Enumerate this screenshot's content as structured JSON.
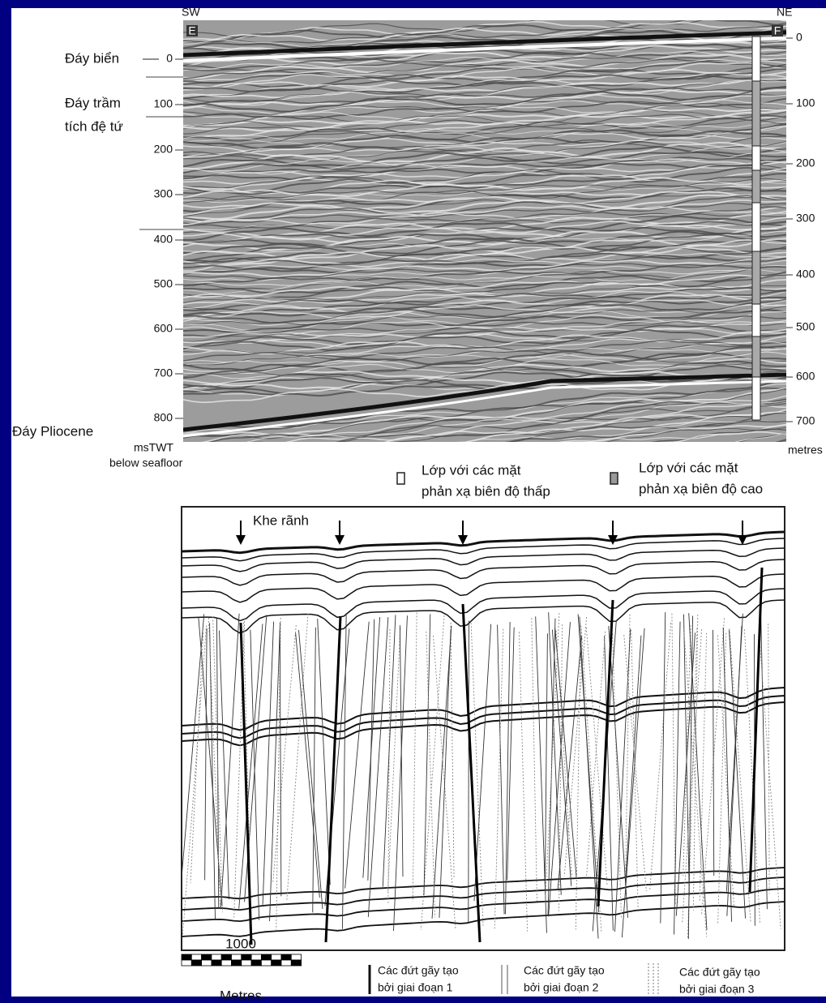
{
  "seismic_section": {
    "orientation_left": "SW",
    "orientation_right": "NE",
    "point_left": "E",
    "point_right": "F",
    "left_axis": {
      "ticks": [
        "0",
        "100",
        "200",
        "300",
        "400",
        "500",
        "600",
        "700",
        "800"
      ],
      "unit_line1": "msTWT",
      "unit_line2": "below seafloor"
    },
    "right_axis": {
      "ticks": [
        "0",
        "100",
        "200",
        "300",
        "400",
        "500",
        "600",
        "700"
      ],
      "unit": "metres"
    },
    "horizon_labels": [
      "Đáy biển",
      "Đáy trầm",
      "tích đệ tứ",
      "Đáy Pliocene"
    ]
  },
  "layer_legend": [
    {
      "line1": "Lớp với các mặt",
      "line2": "phản xạ biên độ thấp"
    },
    {
      "line1": "Lớp với các mặt",
      "line2": "phản xạ biên độ cao"
    }
  ],
  "interpretation": {
    "label": "Khe rãnh"
  },
  "scale_bar": {
    "value": "1000",
    "unit": "Metres"
  },
  "fault_legend": [
    {
      "line1": "Các đứt gãy tạo",
      "line2": "bởi giai đoạn 1"
    },
    {
      "line1": "Các đứt gãy tạo",
      "line2": "bởi giai đoạn 2"
    },
    {
      "line1": "Các đứt gãy tạo",
      "line2": "bởi giai đoạn 3"
    }
  ]
}
